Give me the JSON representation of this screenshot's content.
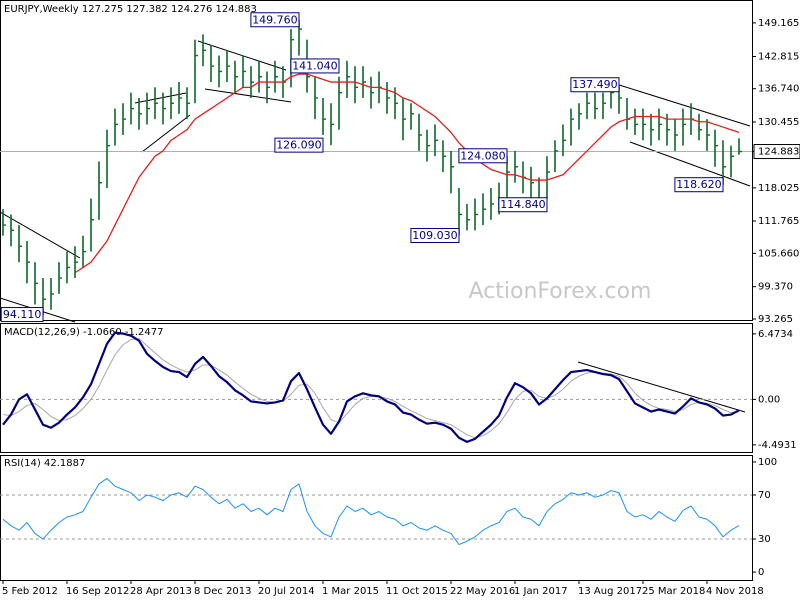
{
  "chart_data": [
    {
      "type": "ohlc",
      "title": "EURJPY,Weekly  127.275 127.382 124.276 124.883",
      "watermark": "ActionForex.com",
      "categories": [
        "5 Feb 2012",
        null,
        null,
        null,
        null,
        null,
        null,
        null,
        "16 Sep 2012",
        null,
        null,
        null,
        null,
        null,
        null,
        null,
        "28 Apr 2013",
        null,
        null,
        null,
        null,
        null,
        null,
        null,
        "8 Dec 2013",
        null,
        null,
        null,
        null,
        null,
        null,
        null,
        "20 Jul 2014",
        null,
        null,
        null,
        null,
        null,
        null,
        null,
        "1 Mar 2015",
        null,
        null,
        null,
        null,
        null,
        null,
        null,
        "11 Oct 2015",
        null,
        null,
        null,
        null,
        null,
        null,
        null,
        "22 May 2016",
        null,
        null,
        null,
        null,
        null,
        null,
        null,
        "1 Jan 2017",
        null,
        null,
        null,
        null,
        null,
        null,
        null,
        "13 Aug 2017",
        null,
        null,
        null,
        null,
        null,
        null,
        null,
        "25 Mar 2018",
        null,
        null,
        null,
        null,
        null,
        null,
        null,
        "4 Nov 2018",
        null,
        null,
        null,
        null
      ],
      "bars": {
        "color": "#0a6b2a",
        "high": [
          114,
          113,
          111,
          108,
          104,
          101,
          101,
          104,
          106,
          107,
          109,
          116,
          123,
          129,
          133,
          134,
          136,
          135,
          136,
          137,
          136,
          137,
          138,
          137,
          146,
          147,
          145,
          143,
          144,
          142,
          143,
          141,
          142,
          140,
          142,
          141,
          148,
          149.76,
          146,
          139,
          135,
          134,
          139,
          142,
          141,
          141,
          139,
          140,
          138,
          137,
          135,
          134,
          132,
          129,
          130,
          127,
          125,
          118,
          115,
          116,
          117,
          118,
          119,
          124,
          125,
          123,
          122,
          120,
          124,
          127,
          130,
          133,
          134,
          136,
          136,
          136,
          137.2,
          137.49,
          135,
          133,
          133,
          132,
          133,
          132,
          131,
          133,
          134,
          132,
          131,
          129,
          127,
          126,
          127.382
        ],
        "low": [
          109,
          107,
          104,
          100,
          96,
          94.11,
          95,
          98,
          100,
          101,
          103,
          106,
          112,
          118,
          126,
          128,
          130,
          129,
          130,
          131,
          130,
          131,
          132,
          131,
          134,
          141,
          138,
          137,
          138,
          136,
          137,
          135,
          136,
          134,
          136,
          135,
          137,
          143,
          136,
          131,
          128,
          126.09,
          129,
          135,
          134,
          135,
          133,
          134,
          132,
          131,
          127,
          129,
          125,
          123,
          124,
          121,
          117,
          109.03,
          110,
          110,
          111,
          112,
          113,
          115,
          119,
          117,
          116,
          114.84,
          116,
          121,
          124,
          126,
          129,
          131,
          131,
          131,
          133,
          132,
          129,
          128,
          127,
          126,
          127,
          126,
          125,
          126,
          128,
          127,
          125,
          122,
          118.62,
          120,
          124.276
        ],
        "close": [
          111,
          110,
          107,
          104,
          100,
          97,
          98,
          101,
          103,
          104,
          106,
          112,
          119,
          126,
          130,
          131,
          133,
          132,
          133,
          134,
          133,
          134,
          135,
          134,
          143,
          144,
          141,
          140,
          141,
          139,
          140,
          138,
          139,
          137,
          139,
          138,
          146,
          148,
          139,
          135,
          131,
          130,
          136,
          139,
          137,
          138,
          136,
          137,
          135,
          134,
          131,
          132,
          128,
          126,
          127,
          124,
          122,
          113,
          112,
          113,
          114,
          115,
          116,
          121,
          122,
          120,
          119,
          116,
          121,
          125,
          127,
          131,
          132,
          134,
          133,
          134,
          136,
          135,
          131,
          130,
          130,
          129,
          130,
          129,
          128,
          130,
          131,
          129,
          128,
          126,
          122,
          124,
          124.883
        ]
      },
      "ma": {
        "color": "#e3201c",
        "values": [
          null,
          null,
          null,
          null,
          null,
          null,
          null,
          null,
          null,
          102,
          103,
          104,
          106,
          108,
          111,
          114,
          117,
          120,
          122,
          124,
          125,
          127,
          128,
          129,
          131,
          132,
          133,
          134,
          135,
          136,
          137,
          137,
          138,
          138,
          138,
          138,
          139,
          139.5,
          139.5,
          139,
          138.5,
          138,
          138,
          138,
          138,
          137.5,
          137,
          137,
          136.5,
          136,
          135,
          134.5,
          133.5,
          132.5,
          131.5,
          130,
          128.5,
          126.5,
          125,
          123.5,
          122.5,
          121.5,
          121,
          120.5,
          120.5,
          120,
          119.5,
          119.5,
          119.5,
          120,
          120.5,
          122,
          123.5,
          125,
          126.5,
          128,
          129.5,
          130.5,
          131,
          131.5,
          131.5,
          131.5,
          131.5,
          131,
          131,
          131,
          131,
          130.5,
          130.5,
          130,
          129.5,
          129,
          128.5
        ]
      },
      "ylim": [
        93.08,
        153.3
      ],
      "yticks": [
        149.165,
        142.815,
        {
          "value": 136.74,
          "label": "136.740"
        },
        130.455,
        124.883,
        118.025,
        111.765,
        {
          "value": 105.66,
          "label": "105.660"
        },
        {
          "value": 99.37,
          "label": "99.370"
        },
        93.265
      ],
      "annotations": [
        {
          "label": "149.760",
          "value": 149.76,
          "index": 37
        },
        {
          "label": "141.040",
          "value": 141.04,
          "index": 42
        },
        {
          "label": "126.090",
          "value": 126.09,
          "index": 40
        },
        {
          "label": "124.080",
          "value": 124.08,
          "index": 63
        },
        {
          "label": "114.840",
          "value": 114.84,
          "index": 68
        },
        {
          "label": "109.030",
          "value": 109.03,
          "index": 57
        },
        {
          "label": "137.490",
          "value": 137.49,
          "index": 77
        },
        {
          "label": "118.620",
          "value": 118.62,
          "index": 90
        },
        {
          "label": "94.110",
          "value": 94.11,
          "index": 5
        }
      ]
    },
    {
      "type": "line",
      "title": "MACD(12,26,9) -1.0660 -1.2477",
      "series": [
        {
          "color": "#00007f",
          "width": 2.2,
          "values": [
            -2.5,
            -1.5,
            0,
            0.5,
            -1,
            -2.5,
            -2.8,
            -2.3,
            -1.5,
            -0.8,
            0.2,
            1.5,
            3.5,
            5.5,
            6.6,
            6.5,
            6.3,
            5.8,
            4.5,
            3.8,
            3.2,
            2.8,
            2.7,
            2.2,
            3.5,
            4.2,
            3.3,
            2.3,
            1.7,
            0.9,
            0.4,
            -0.2,
            -0.3,
            -0.4,
            -0.3,
            -0.1,
            1.8,
            2.6,
            1.0,
            -0.8,
            -2.5,
            -3.4,
            -2.2,
            -0.2,
            0.3,
            0.6,
            0.4,
            0.3,
            -0.2,
            -0.5,
            -1.3,
            -1.5,
            -2.0,
            -2.4,
            -2.3,
            -2.5,
            -2.9,
            -3.8,
            -4.2,
            -3.9,
            -3.2,
            -2.5,
            -1.6,
            0.2,
            1.6,
            1.2,
            0.6,
            -0.5,
            0.1,
            1.0,
            1.9,
            2.7,
            2.8,
            2.9,
            2.7,
            2.5,
            2.4,
            2.0,
            0.8,
            -0.4,
            -0.8,
            -1.2,
            -1.0,
            -1.2,
            -1.4,
            -0.7,
            0.1,
            -0.3,
            -0.5,
            -0.9,
            -1.6,
            -1.5,
            -1.066
          ]
        },
        {
          "color": "#a8a8a8",
          "width": 1,
          "values": [
            -1.5,
            -1.6,
            -1.2,
            -0.6,
            -0.4,
            -1.0,
            -1.7,
            -2.1,
            -2.0,
            -1.6,
            -0.9,
            0.0,
            1.3,
            2.9,
            4.4,
            5.4,
            5.9,
            6.0,
            5.3,
            4.6,
            3.9,
            3.4,
            3.0,
            2.7,
            2.9,
            3.4,
            3.4,
            2.9,
            2.4,
            1.7,
            1.1,
            0.5,
            0.1,
            -0.2,
            -0.3,
            -0.2,
            0.5,
            1.4,
            1.5,
            0.6,
            -0.8,
            -2.0,
            -2.3,
            -1.4,
            -0.5,
            0.1,
            0.3,
            0.3,
            0.1,
            -0.2,
            -0.7,
            -1.1,
            -1.5,
            -1.9,
            -2.1,
            -2.3,
            -2.5,
            -3.0,
            -3.5,
            -3.8,
            -3.6,
            -3.1,
            -2.4,
            -1.3,
            0.0,
            0.8,
            0.9,
            0.3,
            0.1,
            0.4,
            1.0,
            1.8,
            2.3,
            2.6,
            2.7,
            2.6,
            2.5,
            2.3,
            1.6,
            0.6,
            -0.1,
            -0.6,
            -0.9,
            -1.0,
            -1.2,
            -1.0,
            -0.5,
            -0.3,
            -0.4,
            -0.6,
            -1.0,
            -1.3,
            -1.2477
          ]
        }
      ],
      "ylim": [
        -5.2,
        7.45
      ],
      "yticks": [
        6.4734,
        {
          "value": 0,
          "label": "0.00"
        },
        -4.4931
      ],
      "levels": [
        0
      ]
    },
    {
      "type": "line",
      "title": "RSI(14) 42.1887",
      "series": [
        {
          "color": "#1e90ff",
          "width": 1,
          "values": [
            48,
            42,
            38,
            45,
            35,
            30,
            38,
            45,
            50,
            52,
            55,
            68,
            80,
            85,
            78,
            75,
            72,
            65,
            70,
            68,
            65,
            70,
            72,
            68,
            78,
            75,
            68,
            62,
            66,
            58,
            62,
            55,
            58,
            52,
            58,
            55,
            75,
            80,
            55,
            42,
            35,
            32,
            50,
            60,
            55,
            58,
            52,
            55,
            50,
            48,
            42,
            45,
            40,
            38,
            42,
            38,
            35,
            25,
            28,
            32,
            38,
            42,
            45,
            55,
            58,
            50,
            48,
            42,
            55,
            62,
            66,
            72,
            70,
            72,
            68,
            70,
            74,
            72,
            55,
            50,
            52,
            48,
            55,
            50,
            46,
            56,
            60,
            50,
            48,
            42,
            32,
            38,
            42.1887
          ]
        }
      ],
      "ylim": [
        -7.2,
        105.4
      ],
      "yticks": [
        100,
        70,
        30,
        0
      ],
      "levels": [
        70,
        30
      ]
    }
  ]
}
